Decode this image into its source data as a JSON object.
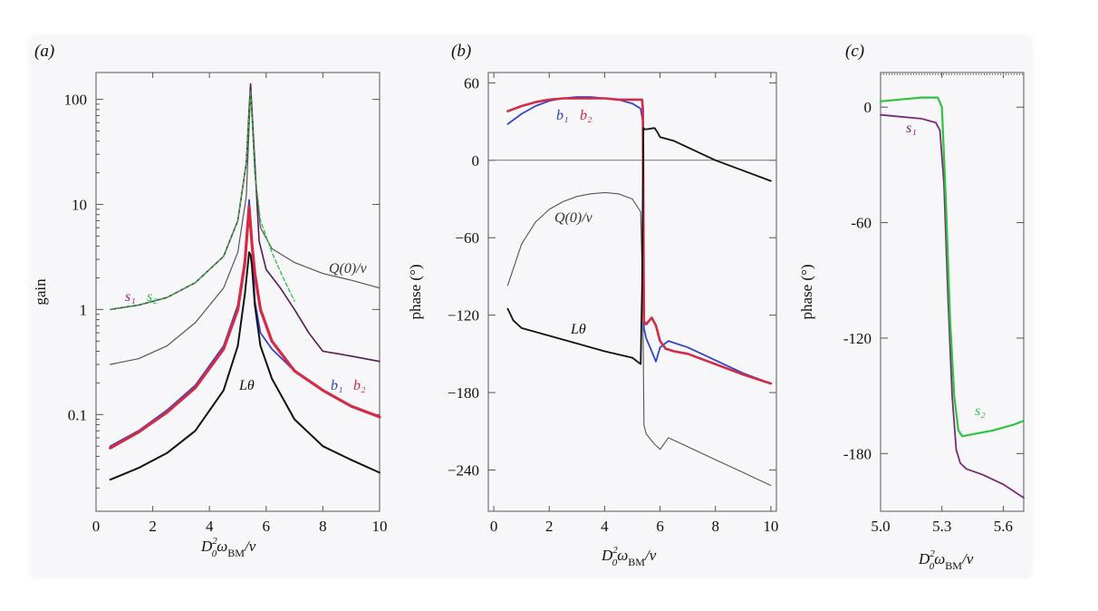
{
  "chart_data": [
    {
      "panel": "(a)",
      "type": "line",
      "yscale": "log",
      "xlabel": "D",
      "xlabel_sup": "2",
      "xlabel_sub": "0",
      "xlabel_omega": "ω",
      "xlabel_omega_sub": "BM",
      "xlabel_tail": "/ν",
      "ylabel": "gain",
      "xlim": [
        0,
        10
      ],
      "ylim": [
        0.012,
        180
      ],
      "xticks": [
        0,
        2,
        4,
        6,
        8,
        10
      ],
      "xtick_labels": [
        "0",
        "2",
        "4",
        "6",
        "8",
        "10"
      ],
      "yticks": [
        0.1,
        1,
        10,
        100
      ],
      "ytick_labels": [
        "0.1",
        "1",
        "10",
        "100"
      ],
      "series": [
        {
          "name": "Q(0)/ν",
          "label": "Q(0)/ν",
          "color": "#555555",
          "width": 1.2,
          "x": [
            0.5,
            1.5,
            2.5,
            3.5,
            4.5,
            5.0,
            5.3,
            5.45,
            5.6,
            5.8,
            6.2,
            7,
            8,
            9,
            10
          ],
          "y": [
            0.3,
            0.34,
            0.45,
            0.75,
            1.6,
            3.5,
            12,
            120,
            20,
            6,
            3.8,
            2.8,
            2.2,
            1.9,
            1.6
          ]
        },
        {
          "name": "s1",
          "label": "s₁",
          "color": "#5a1a55",
          "width": 1.6,
          "x": [
            0.5,
            1.5,
            2.5,
            3.5,
            4.5,
            5.0,
            5.3,
            5.4,
            5.45,
            5.5,
            5.6,
            5.75,
            6.0,
            6.5,
            7,
            7.5,
            8,
            8.5,
            9,
            10
          ],
          "y": [
            1.0,
            1.1,
            1.3,
            1.8,
            3.2,
            7,
            25,
            80,
            140,
            80,
            25,
            4.5,
            2.4,
            1.6,
            1.0,
            0.6,
            0.4,
            0.38,
            0.36,
            0.32
          ]
        },
        {
          "name": "s2",
          "label": "s₂",
          "color": "#2bbd3c",
          "width": 1.3,
          "dash": "4,3",
          "x": [
            0.5,
            1.5,
            2.5,
            3.5,
            4.5,
            5.0,
            5.3,
            5.4,
            5.45,
            5.5,
            5.6,
            5.8,
            6.2,
            6.6,
            7
          ],
          "y": [
            1.0,
            1.1,
            1.3,
            1.8,
            3.2,
            7,
            25,
            70,
            120,
            70,
            20,
            7,
            3.5,
            2.0,
            1.2
          ]
        },
        {
          "name": "b1",
          "label": "b₁",
          "color": "#3344cc",
          "width": 1.8,
          "x": [
            0.5,
            1.5,
            2.5,
            3.5,
            4.5,
            5.0,
            5.25,
            5.4,
            5.5,
            5.6,
            5.8,
            6.2,
            7,
            8,
            9,
            10
          ],
          "y": [
            0.05,
            0.07,
            0.11,
            0.19,
            0.45,
            1.1,
            3.0,
            11,
            4.5,
            1.2,
            0.6,
            0.42,
            0.26,
            0.17,
            0.12,
            0.095
          ]
        },
        {
          "name": "b2",
          "label": "b₂",
          "color": "#d42a44",
          "width": 3.2,
          "x": [
            0.5,
            1.5,
            2.5,
            3.5,
            4.5,
            5.0,
            5.25,
            5.4,
            5.5,
            5.6,
            5.8,
            6.2,
            7,
            8,
            9,
            10
          ],
          "y": [
            0.048,
            0.068,
            0.105,
            0.18,
            0.42,
            1.0,
            2.8,
            9.5,
            4.2,
            2.2,
            1.0,
            0.5,
            0.26,
            0.17,
            0.12,
            0.095
          ]
        },
        {
          "name": "Lθ",
          "label": "Lθ",
          "color": "#111111",
          "width": 2.0,
          "x": [
            0.5,
            1.5,
            2.5,
            3.5,
            4.5,
            5.0,
            5.25,
            5.4,
            5.45,
            5.5,
            5.6,
            5.8,
            6.2,
            7,
            8,
            9,
            10
          ],
          "y": [
            0.024,
            0.031,
            0.043,
            0.07,
            0.17,
            0.45,
            1.4,
            3.5,
            3.3,
            2.6,
            1.1,
            0.45,
            0.22,
            0.09,
            0.05,
            0.037,
            0.028
          ]
        }
      ]
    },
    {
      "panel": "(b)",
      "type": "line",
      "xlabel": "D",
      "xlabel_sup": "2",
      "xlabel_sub": "0",
      "xlabel_omega": "ω",
      "xlabel_omega_sub": "BM",
      "xlabel_tail": "/ν",
      "ylabel": "phase (°)",
      "xlim": [
        -0.2,
        10.2
      ],
      "ylim": [
        -272,
        68
      ],
      "xticks": [
        0,
        2,
        4,
        6,
        8,
        10
      ],
      "xtick_labels": [
        "0",
        "2",
        "4",
        "6",
        "8",
        "10"
      ],
      "yticks": [
        60,
        0,
        -60,
        -120,
        -180,
        -240
      ],
      "ytick_labels": [
        "60",
        "0",
        "−60",
        "−120",
        "−180",
        "−240"
      ],
      "zero_line": true,
      "series": [
        {
          "name": "Q(0)/ν",
          "label": "Q(0)/ν",
          "color": "#555555",
          "width": 1.1,
          "x": [
            0.5,
            1.0,
            1.5,
            2.0,
            2.5,
            3.0,
            3.5,
            4.0,
            4.5,
            5.0,
            5.3,
            5.38,
            5.42,
            5.5,
            5.8,
            6.0,
            6.3,
            7,
            8,
            9,
            10
          ],
          "y": [
            -97,
            -65,
            -48,
            -38,
            -32,
            -28,
            -26,
            -25,
            -26,
            -30,
            -40,
            -110,
            -205,
            -212,
            -220,
            -224,
            -215,
            -222,
            -232,
            -242,
            -252
          ]
        },
        {
          "name": "b1",
          "label": "b₁",
          "color": "#3344cc",
          "width": 1.8,
          "x": [
            0.5,
            1.0,
            1.5,
            2.0,
            2.5,
            3.0,
            3.5,
            4.0,
            4.5,
            5.0,
            5.3,
            5.38,
            5.42,
            5.5,
            5.7,
            5.85,
            6.0,
            6.3,
            7,
            8,
            9,
            10
          ],
          "y": [
            28,
            36,
            42,
            46,
            48,
            49,
            49,
            48,
            47,
            44,
            40,
            30,
            -130,
            -138,
            -148,
            -156,
            -145,
            -140,
            -145,
            -155,
            -165,
            -173
          ]
        },
        {
          "name": "b2",
          "label": "b₂",
          "color": "#d42a44",
          "width": 2.6,
          "x": [
            0.5,
            1.0,
            1.5,
            2.0,
            2.5,
            3.0,
            3.5,
            4.0,
            4.5,
            5.0,
            5.35,
            5.38,
            5.42,
            5.5,
            5.7,
            5.85,
            6.0,
            6.2,
            6.5,
            7,
            8,
            9,
            10
          ],
          "y": [
            38,
            42,
            45,
            47,
            48,
            48,
            48,
            48,
            47,
            47,
            47,
            40,
            -125,
            -127,
            -122,
            -128,
            -140,
            -146,
            -148,
            -150,
            -158,
            -166,
            -173
          ]
        },
        {
          "name": "Lθ",
          "label": "Lθ",
          "color": "#111111",
          "width": 1.8,
          "x": [
            0.5,
            0.7,
            1.0,
            2.0,
            3.0,
            4.0,
            5.0,
            5.3,
            5.35,
            5.4,
            5.45,
            5.5,
            5.8,
            5.9,
            6.0,
            6.5,
            7,
            8,
            9,
            10
          ],
          "y": [
            -115,
            -124,
            -130,
            -136,
            -142,
            -148,
            -153,
            -158,
            -100,
            25,
            24,
            24,
            25,
            22,
            18,
            15,
            10,
            0,
            -8,
            -16
          ]
        }
      ]
    },
    {
      "panel": "(c)",
      "type": "line",
      "xlabel": "D",
      "xlabel_sup": "2",
      "xlabel_sub": "0",
      "xlabel_omega": "ω",
      "xlabel_omega_sub": "BM",
      "xlabel_tail": "/ν",
      "ylabel": "phase (°)",
      "xlim": [
        5.0,
        5.7
      ],
      "ylim": [
        -210,
        18
      ],
      "xticks": [
        5.0,
        5.3,
        5.6
      ],
      "xtick_labels": [
        "5.0",
        "5.3",
        "5.6"
      ],
      "yticks": [
        0,
        -60,
        -120,
        -180
      ],
      "ytick_labels": [
        "0",
        "-60",
        "-120",
        "-180"
      ],
      "series": [
        {
          "name": "s1",
          "label": "s₁",
          "color": "#7a2a7a",
          "width": 1.8,
          "x": [
            5.0,
            5.1,
            5.2,
            5.27,
            5.29,
            5.31,
            5.33,
            5.35,
            5.37,
            5.39,
            5.42,
            5.5,
            5.6,
            5.7
          ],
          "y": [
            -4,
            -5,
            -6,
            -8,
            -12,
            -40,
            -100,
            -150,
            -178,
            -185,
            -188,
            -191,
            -196,
            -203
          ]
        },
        {
          "name": "s2",
          "label": "s₂",
          "color": "#2ec43e",
          "width": 2.2,
          "x": [
            5.0,
            5.1,
            5.2,
            5.28,
            5.3,
            5.32,
            5.34,
            5.36,
            5.38,
            5.4,
            5.45,
            5.55,
            5.65,
            5.7
          ],
          "y": [
            3,
            4,
            5,
            5,
            0,
            -50,
            -110,
            -150,
            -168,
            -171,
            -170,
            -168,
            -165,
            -163
          ]
        }
      ]
    }
  ]
}
